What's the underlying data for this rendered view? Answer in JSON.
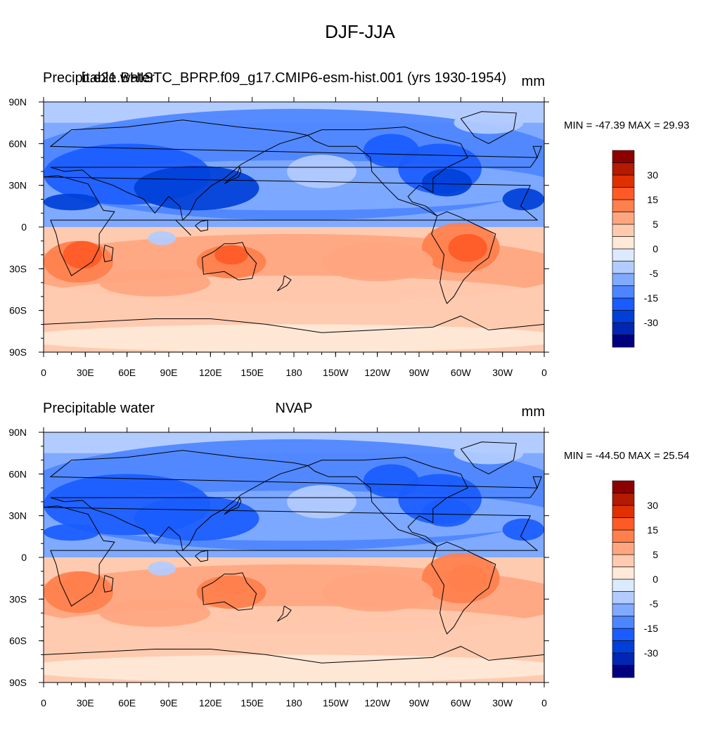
{
  "figure_title": "DJF-JJA",
  "longitude_ticks": [
    "0",
    "30E",
    "60E",
    "90E",
    "120E",
    "150E",
    "180",
    "150W",
    "120W",
    "90W",
    "60W",
    "30W",
    "0"
  ],
  "latitude_ticks": [
    "90N",
    "60N",
    "30N",
    "0",
    "30S",
    "60S",
    "90S"
  ],
  "colorbar": {
    "colors": [
      "#00007f",
      "#0026b3",
      "#0040d9",
      "#1a5cff",
      "#4d85ff",
      "#80aaff",
      "#b3ccff",
      "#dbeaff",
      "#ffe9d9",
      "#ffcbb0",
      "#ffa680",
      "#ff7f4d",
      "#ff5a26",
      "#e03000",
      "#b31a00",
      "#8c0000"
    ],
    "tick_labels": [
      {
        "boundary": 2,
        "label": "-30"
      },
      {
        "boundary": 4,
        "label": "-15"
      },
      {
        "boundary": 6,
        "label": "-5"
      },
      {
        "boundary": 8,
        "label": "0"
      },
      {
        "boundary": 10,
        "label": "5"
      },
      {
        "boundary": 12,
        "label": "15"
      },
      {
        "boundary": 14,
        "label": "30"
      }
    ]
  },
  "panels": [
    {
      "id": "top",
      "left_label": "Precipitable water",
      "center_label": "b.e21.BHISTC_BPRP.f09_g17.CMIP6-esm-hist.001 (yrs 1930-1954)",
      "units": "mm",
      "minmax": "MIN = -47.39 MAX =  29.93"
    },
    {
      "id": "bottom",
      "left_label": "Precipitable water",
      "center_label": "NVAP",
      "units": "mm",
      "minmax": "MIN = -44.50 MAX =  25.54"
    }
  ]
}
